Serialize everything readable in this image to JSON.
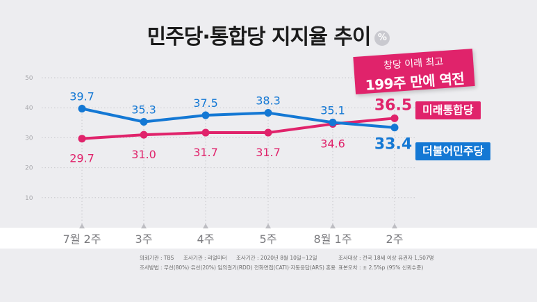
{
  "title": "민주당·통합당 지지율 추이",
  "unit_badge": "%",
  "callout": {
    "line1": "창당 이래 최고",
    "line2": "199주 만에 역전"
  },
  "colors": {
    "pink": "#e0236b",
    "blue": "#1478d4",
    "grid": "#c8c8cc",
    "tick": "#bdbdc2"
  },
  "chart_data": {
    "type": "line",
    "categories": [
      "7월 2주",
      "3주",
      "4주",
      "5주",
      "8월 1주",
      "2주"
    ],
    "y_ticks": [
      10,
      20,
      30,
      40,
      50
    ],
    "ylim": [
      0,
      50
    ],
    "grid": "horizontal dotted",
    "series": [
      {
        "name": "미래통합당",
        "color": "#e0236b",
        "values": [
          29.7,
          31.0,
          31.7,
          31.7,
          34.6,
          36.5
        ]
      },
      {
        "name": "더불어민주당",
        "color": "#1478d4",
        "values": [
          39.7,
          35.3,
          37.5,
          38.3,
          35.1,
          33.4
        ]
      }
    ],
    "labels": {
      "pink": [
        "29.7",
        "31.0",
        "31.7",
        "31.7",
        "34.6",
        "36.5"
      ],
      "blue": [
        "39.7",
        "35.3",
        "37.5",
        "38.3",
        "35.1",
        "33.4"
      ]
    }
  },
  "notes": {
    "row1": [
      "의뢰기관 : TBS",
      "조사기관 : 리얼미터",
      "조사기간 : 2020년 8월 10일~12일",
      "조사대상 : 전국 18세 이상 유권자 1,507명"
    ],
    "row2": [
      "조사방법 : 무선(80%)·유선(20%) 임의걸기(RDD) 전화면접(CATI)·자동응답(ARS) 혼용",
      "표본오차 : ± 2.5%p (95% 신뢰수준)"
    ]
  }
}
